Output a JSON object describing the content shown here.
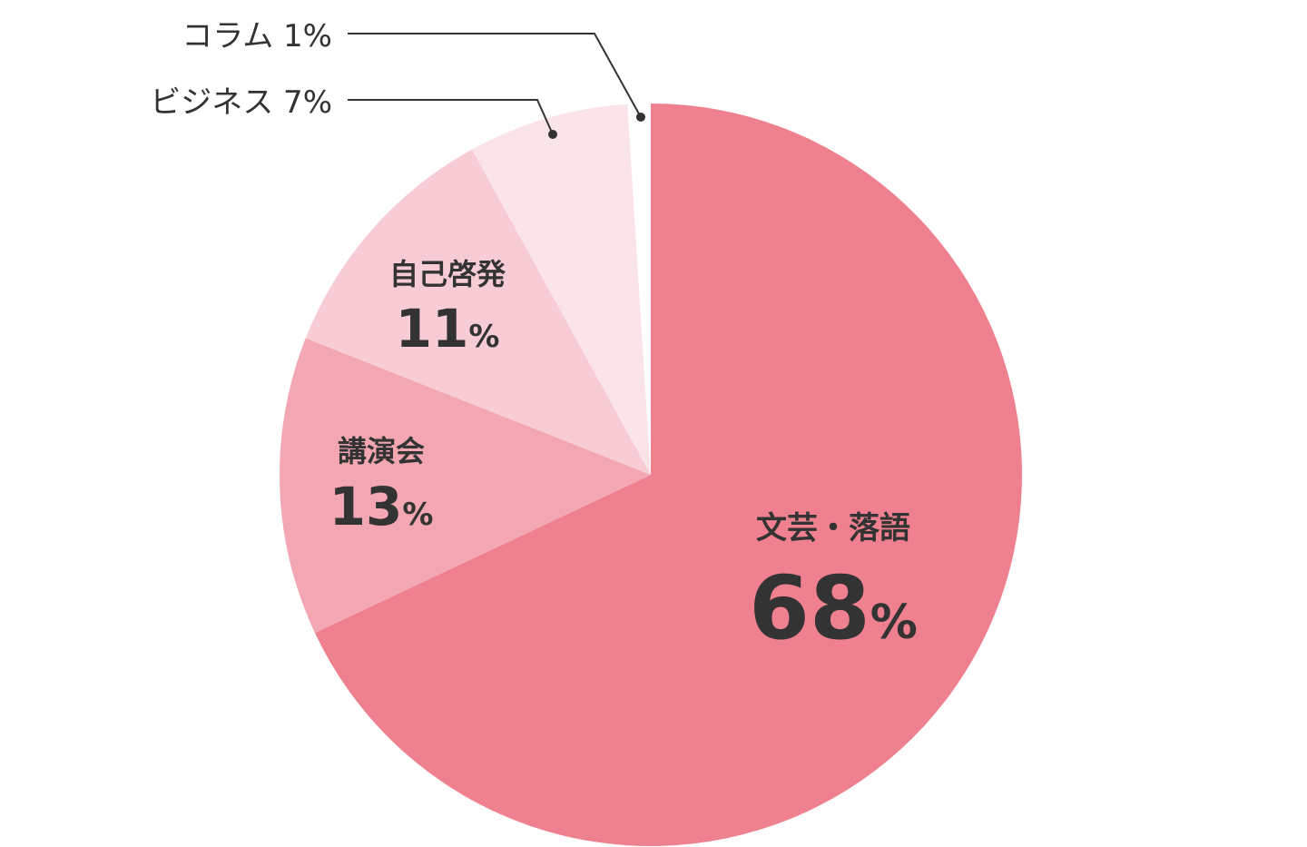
{
  "chart_data": {
    "type": "pie",
    "slices": [
      {
        "label": "文芸・落語",
        "value": 68,
        "display": "68",
        "unit": "%",
        "color": "#ef808f"
      },
      {
        "label": "講演会",
        "value": 13,
        "display": "13",
        "unit": "%",
        "color": "#f3a7b2"
      },
      {
        "label": "自己啓発",
        "value": 11,
        "display": "11",
        "unit": "%",
        "color": "#f8ccd4"
      },
      {
        "label": "ビジネス",
        "value": 7,
        "display": "7",
        "unit": "%",
        "color": "#fbe4e8",
        "callout": "ビジネス 7%"
      },
      {
        "label": "コラム",
        "value": 1,
        "display": "1",
        "unit": "%",
        "color": "#ffffff",
        "callout": "コラム 1%"
      }
    ],
    "start_angle": "12 o'clock",
    "direction": "clockwise",
    "legend": "none",
    "title": ""
  }
}
